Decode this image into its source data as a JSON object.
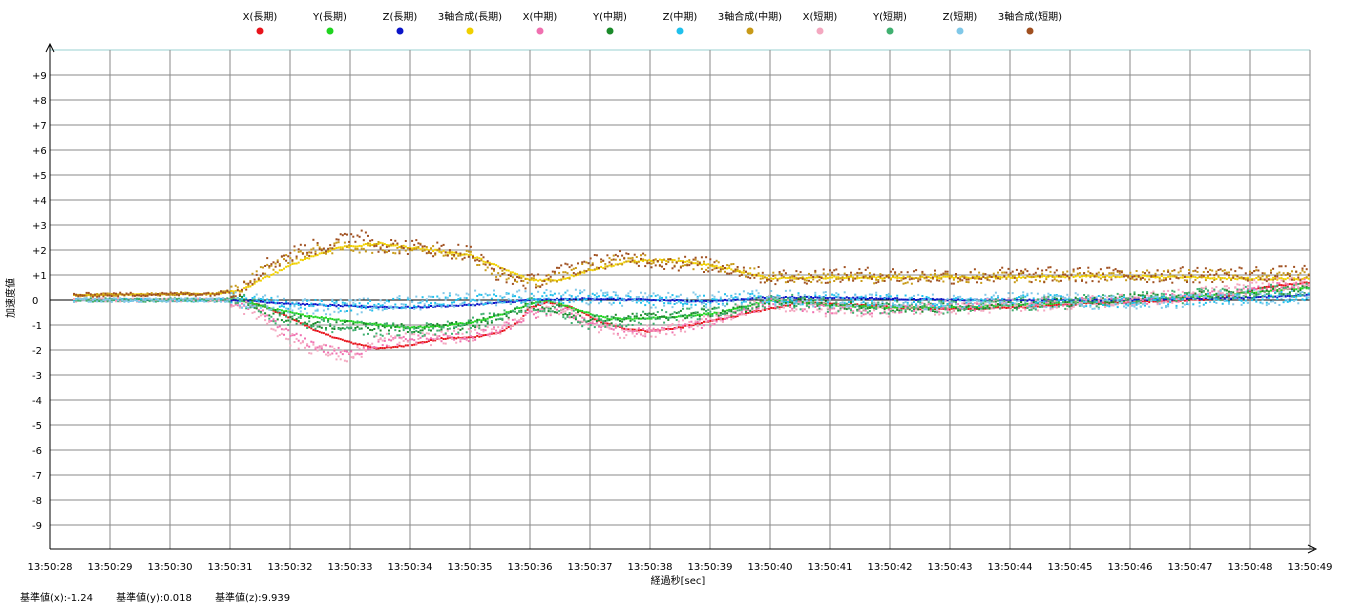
{
  "chart_data": {
    "type": "scatter",
    "xlabel": "経過秒[sec]",
    "ylabel": "加速度値",
    "x_ticks": [
      "13:50:28",
      "13:50:29",
      "13:50:30",
      "13:50:31",
      "13:50:32",
      "13:50:33",
      "13:50:34",
      "13:50:35",
      "13:50:36",
      "13:50:37",
      "13:50:38",
      "13:50:39",
      "13:50:40",
      "13:50:41",
      "13:50:42",
      "13:50:43",
      "13:50:44",
      "13:50:45",
      "13:50:46",
      "13:50:47",
      "13:50:48",
      "13:50:49"
    ],
    "y_ticks": [
      "+9",
      "+8",
      "+7",
      "+6",
      "+5",
      "+4",
      "+3",
      "+2",
      "+1",
      "0",
      "-1",
      "-2",
      "-3",
      "-4",
      "-5",
      "-6",
      "-7",
      "-8",
      "-9"
    ],
    "ylim": [
      -10,
      10
    ],
    "xlim": [
      0,
      21
    ],
    "x_unit": "seconds elapsed from 13:50:28",
    "grid": true,
    "legend_position": "top",
    "series": [
      {
        "name": "X(長期)",
        "color": "#e8141c",
        "noise": 0.03,
        "x": [
          0.4,
          3.2,
          3.5,
          4.0,
          4.5,
          5.0,
          5.5,
          6.0,
          6.5,
          7.0,
          7.5,
          7.8,
          8.0,
          8.3,
          8.7,
          9.2,
          9.6,
          10.0,
          10.5,
          11.5,
          12.5,
          13.5,
          14.5,
          15.5,
          16.5,
          17.5,
          18.5,
          19.5,
          20.2,
          21.0
        ],
        "y": [
          0,
          0,
          -0.2,
          -0.7,
          -1.3,
          -1.7,
          -1.95,
          -1.8,
          -1.55,
          -1.5,
          -1.3,
          -0.9,
          -0.3,
          -0.1,
          -0.3,
          -0.9,
          -1.15,
          -1.25,
          -1.1,
          -0.6,
          -0.1,
          -0.2,
          -0.35,
          -0.35,
          -0.25,
          -0.1,
          -0.05,
          0.05,
          0.5,
          0.7
        ]
      },
      {
        "name": "Y(長期)",
        "color": "#1fd41f",
        "noise": 0.03,
        "x": [
          0.4,
          3.2,
          3.6,
          4.2,
          5.0,
          5.5,
          6.0,
          6.5,
          7.0,
          7.5,
          8.0,
          8.3,
          8.8,
          9.3,
          9.8,
          10.5,
          11.2,
          12.0,
          13.0,
          14.0,
          15.0,
          16.0,
          17.0,
          18.0,
          19.0,
          20.0,
          21.0
        ],
        "y": [
          0,
          0,
          -0.3,
          -0.6,
          -0.85,
          -1.0,
          -1.1,
          -1.05,
          -0.9,
          -0.6,
          -0.15,
          0.0,
          -0.4,
          -0.75,
          -0.75,
          -0.65,
          -0.5,
          0.0,
          -0.2,
          -0.3,
          -0.3,
          -0.2,
          -0.1,
          0.0,
          0.1,
          0.3,
          0.5
        ]
      },
      {
        "name": "Z(長期)",
        "color": "#0a14c8",
        "noise": 0.03,
        "x": [
          0.4,
          3.2,
          4.0,
          5.0,
          6.0,
          7.0,
          8.0,
          9.0,
          10.0,
          11.0,
          12.0,
          13.0,
          14.0,
          15.0,
          16.0,
          17.0,
          18.0,
          19.0,
          20.0,
          21.0
        ],
        "y": [
          0,
          0,
          -0.15,
          -0.25,
          -0.3,
          -0.2,
          0.0,
          0.05,
          0.0,
          -0.05,
          0.1,
          0.1,
          0.05,
          0.0,
          0.0,
          0.0,
          0.0,
          0.05,
          0.1,
          0.2
        ]
      },
      {
        "name": "3軸合成(長期)",
        "color": "#f0d000",
        "noise": 0.04,
        "x": [
          0.4,
          2.8,
          3.2,
          3.6,
          4.2,
          4.8,
          5.5,
          6.2,
          7.0,
          7.5,
          8.0,
          8.5,
          9.0,
          9.7,
          10.3,
          11.0,
          11.5,
          12.0,
          13.0,
          14.0,
          15.0,
          16.0,
          17.0,
          18.0,
          19.0,
          20.0,
          21.0
        ],
        "y": [
          0.2,
          0.25,
          0.4,
          0.9,
          1.6,
          2.1,
          2.25,
          2.05,
          1.8,
          1.3,
          0.8,
          0.8,
          1.2,
          1.55,
          1.6,
          1.4,
          1.15,
          0.85,
          0.9,
          0.9,
          0.9,
          0.9,
          0.95,
          0.95,
          0.9,
          0.85,
          0.85
        ]
      },
      {
        "name": "X(中期)",
        "color": "#f070b0",
        "noise": 0.18,
        "x": [
          0.4,
          3.0,
          3.5,
          4.0,
          4.5,
          5.0,
          5.5,
          6.0,
          6.5,
          7.0,
          7.5,
          8.0,
          8.5,
          9.0,
          9.5,
          10.0,
          10.5,
          11.0,
          11.5,
          12.0,
          13.0,
          14.0,
          15.0,
          16.0,
          17.0,
          18.0,
          19.0,
          20.0,
          21.0
        ],
        "y": [
          0,
          0,
          -0.5,
          -1.4,
          -1.9,
          -2.2,
          -1.7,
          -1.6,
          -1.5,
          -1.5,
          -1.2,
          -0.6,
          -0.4,
          -0.9,
          -1.2,
          -1.3,
          -1.1,
          -0.9,
          -0.5,
          -0.1,
          -0.4,
          -0.4,
          -0.3,
          -0.2,
          -0.1,
          0.0,
          0.1,
          0.4,
          0.7
        ]
      },
      {
        "name": "Y(中期)",
        "color": "#1a8a2a",
        "noise": 0.18,
        "x": [
          0.4,
          3.2,
          3.8,
          4.5,
          5.5,
          6.2,
          7.0,
          7.5,
          8.0,
          8.5,
          9.0,
          9.5,
          10.5,
          11.5,
          12.0,
          13.0,
          14.0,
          15.0,
          16.0,
          17.0,
          18.0,
          19.0,
          20.0,
          21.0
        ],
        "y": [
          0,
          0,
          -0.6,
          -0.95,
          -1.1,
          -1.15,
          -1.0,
          -0.7,
          -0.2,
          -0.4,
          -0.8,
          -0.75,
          -0.6,
          -0.4,
          0.0,
          -0.2,
          -0.3,
          -0.3,
          -0.2,
          -0.1,
          0.05,
          0.15,
          0.3,
          0.4
        ]
      },
      {
        "name": "Z(中期)",
        "color": "#20c0ec",
        "noise": 0.22,
        "x": [
          0.4,
          3.2,
          4.0,
          5.0,
          6.0,
          7.0,
          8.0,
          9.0,
          10.0,
          11.0,
          12.0,
          13.0,
          14.0,
          15.0,
          16.0,
          17.0,
          18.0,
          19.0,
          20.0,
          21.0
        ],
        "y": [
          0,
          0,
          -0.15,
          -0.3,
          -0.1,
          0.0,
          0.1,
          0.1,
          0.0,
          0.0,
          0.1,
          0.0,
          0.0,
          -0.1,
          0.0,
          0.0,
          -0.1,
          0.0,
          0.1,
          0.1
        ]
      },
      {
        "name": "3軸合成(中期)",
        "color": "#c89a18",
        "noise": 0.22,
        "x": [
          0.4,
          2.8,
          3.2,
          3.6,
          4.2,
          4.8,
          5.5,
          6.2,
          7.0,
          7.5,
          8.0,
          8.5,
          9.0,
          9.7,
          10.3,
          11.0,
          11.5,
          12.0,
          13.0,
          14.0,
          15.0,
          16.0,
          17.0,
          18.0,
          19.0,
          20.0,
          21.0
        ],
        "y": [
          0.2,
          0.25,
          0.5,
          1.3,
          1.9,
          2.1,
          2.1,
          2.05,
          1.8,
          1.0,
          0.7,
          0.9,
          1.4,
          1.7,
          1.5,
          1.4,
          1.2,
          0.9,
          0.9,
          0.85,
          0.9,
          0.9,
          0.95,
          1.0,
          1.0,
          1.0,
          1.0
        ]
      },
      {
        "name": "X(短期)",
        "color": "#f4a8c0",
        "noise": 0.28,
        "x": [
          0.4,
          3.0,
          3.5,
          4.0,
          4.5,
          5.0,
          5.5,
          6.0,
          6.5,
          7.0,
          7.5,
          8.0,
          8.5,
          9.0,
          9.5,
          10.0,
          10.5,
          11.0,
          11.5,
          12.0,
          13.0,
          14.0,
          15.0,
          16.0,
          17.0,
          18.0,
          19.0,
          20.0,
          21.0
        ],
        "y": [
          0,
          0,
          -0.6,
          -1.6,
          -2.0,
          -2.3,
          -1.6,
          -1.6,
          -1.5,
          -1.4,
          -1.1,
          -0.5,
          -0.3,
          -0.9,
          -1.3,
          -1.3,
          -1.1,
          -0.8,
          -0.4,
          -0.1,
          -0.4,
          -0.4,
          -0.3,
          -0.2,
          -0.1,
          0.0,
          0.2,
          0.5,
          0.8
        ]
      },
      {
        "name": "Y(短期)",
        "color": "#40b070",
        "noise": 0.28,
        "x": [
          0.4,
          3.2,
          3.8,
          4.5,
          5.5,
          6.2,
          7.0,
          7.5,
          8.0,
          8.5,
          9.0,
          9.5,
          10.5,
          11.5,
          12.0,
          13.0,
          14.0,
          15.0,
          16.0,
          17.0,
          18.0,
          19.0,
          20.0,
          21.0
        ],
        "y": [
          0,
          0,
          -0.7,
          -1.0,
          -1.2,
          -1.2,
          -1.0,
          -0.6,
          -0.1,
          -0.5,
          -0.9,
          -0.8,
          -0.6,
          -0.4,
          0.0,
          -0.2,
          -0.3,
          -0.3,
          -0.2,
          -0.1,
          0.05,
          0.15,
          0.3,
          0.4
        ]
      },
      {
        "name": "Z(短期)",
        "color": "#80c8e8",
        "noise": 0.32,
        "x": [
          0.4,
          3.2,
          4.0,
          5.0,
          6.0,
          7.0,
          8.0,
          9.0,
          10.0,
          11.0,
          12.0,
          13.0,
          14.0,
          15.0,
          16.0,
          17.0,
          18.0,
          19.0,
          20.0,
          21.0
        ],
        "y": [
          0,
          0,
          -0.2,
          -0.3,
          -0.1,
          0.1,
          0.1,
          0.1,
          0.0,
          0.0,
          0.1,
          0.0,
          0.0,
          -0.1,
          0.0,
          0.0,
          -0.2,
          0.0,
          0.1,
          0.1
        ]
      },
      {
        "name": "3軸合成(短期)",
        "color": "#a05020",
        "noise": 0.32,
        "x": [
          0.4,
          2.8,
          3.2,
          3.6,
          4.2,
          4.8,
          5.2,
          5.5,
          6.2,
          7.0,
          7.5,
          8.0,
          8.5,
          9.0,
          9.7,
          10.3,
          11.0,
          11.5,
          12.0,
          13.0,
          14.0,
          15.0,
          16.0,
          17.0,
          18.0,
          19.0,
          20.0,
          21.0
        ],
        "y": [
          0.2,
          0.25,
          0.5,
          1.4,
          2.0,
          2.3,
          2.7,
          2.2,
          2.1,
          1.9,
          1.0,
          0.7,
          1.1,
          1.5,
          1.7,
          1.5,
          1.4,
          1.2,
          0.9,
          1.0,
          1.0,
          0.95,
          1.0,
          1.0,
          1.0,
          1.0,
          1.05,
          1.05
        ]
      }
    ]
  },
  "footer": {
    "base_x": "基準値(x):-1.24",
    "base_y": "基準値(y):0.018",
    "base_z": "基準値(z):9.939"
  }
}
